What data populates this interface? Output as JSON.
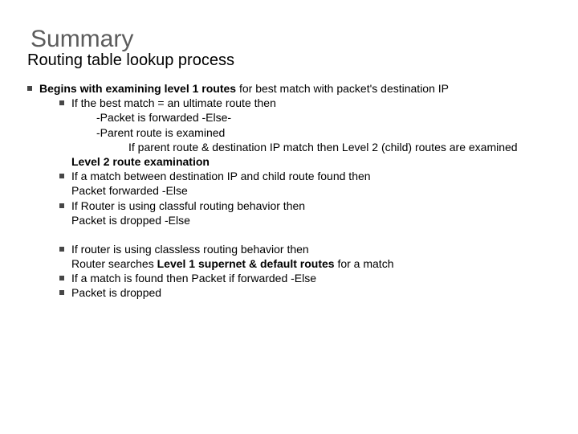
{
  "colors": {
    "title": "#5c5c5c",
    "text": "#000000",
    "bullet": "#464646",
    "background": "#ffffff"
  },
  "typography": {
    "title_fontsize": 30,
    "subtitle_fontsize": 20,
    "body_fontsize": 14,
    "font_family": "Arial"
  },
  "title": "Summary",
  "subtitle": "Routing table lookup process",
  "lines": {
    "a1a": "Begins with examining level 1 routes",
    "a1b": " for best match with packet's destination IP",
    "b1": "If the best match = an ultimate route then",
    "c1": "-Packet is forwarded  -Else-",
    "c2": "-Parent route is examined",
    "d1": "If parent route & destination IP match then Level 2 (child) routes are examined",
    "e1": "Level 2 route examination",
    "f1": "If a match between destination IP and child route found then",
    "f2": "Packet forwarded -Else",
    "g1": "If Router is using classful routing behavior then",
    "g2": "Packet is dropped -Else",
    "h1": "If router is using classless routing behavior then",
    "h2a": "Router searches ",
    "h2b": "Level 1 supernet & default routes",
    "h2c": " for a match",
    "i1": "If a match is found then Packet if forwarded -Else",
    "j1": "Packet is dropped"
  }
}
